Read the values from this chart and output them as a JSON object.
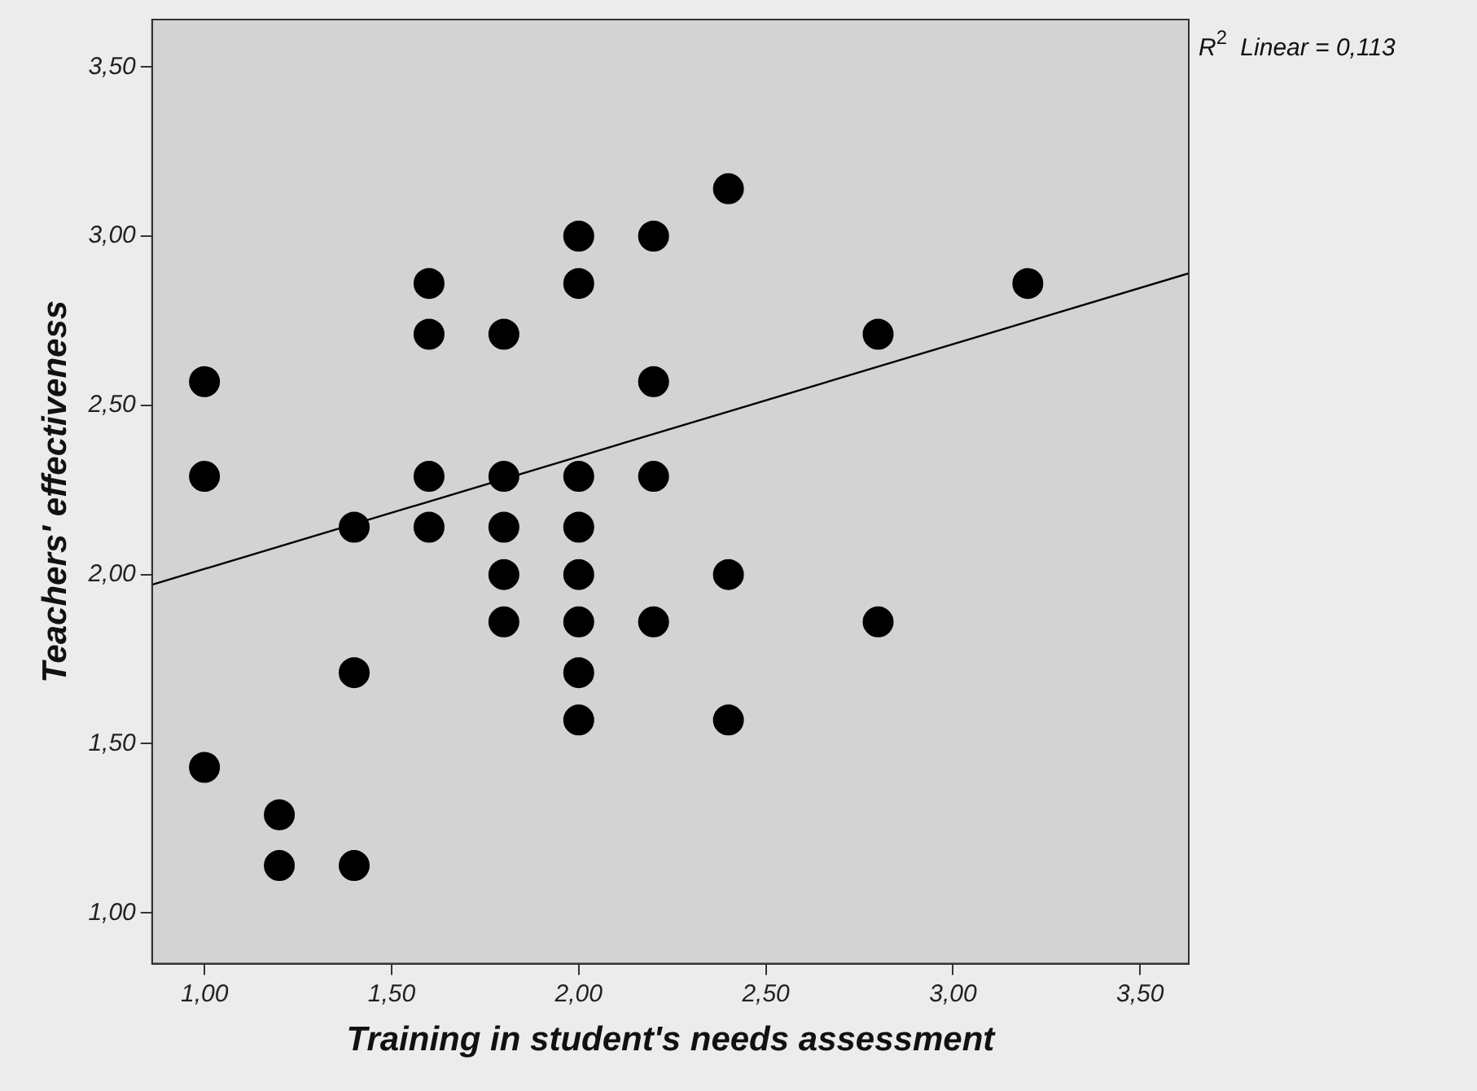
{
  "chart_data": {
    "type": "scatter",
    "xlabel": "Training in student's needs assessment",
    "ylabel": "Teachers' effectiveness",
    "annotations": [
      "R$^{2}$ Linear = 0,113"
    ],
    "xlim": [
      0.86,
      3.63
    ],
    "ylim": [
      0.85,
      3.64
    ],
    "xticks": [
      {
        "value": 1,
        "label": "1,00"
      },
      {
        "value": 1.5,
        "label": "1,50"
      },
      {
        "value": 2,
        "label": "2,00"
      },
      {
        "value": 2.5,
        "label": "2,50"
      },
      {
        "value": 3,
        "label": "3,00"
      },
      {
        "value": 3.5,
        "label": "3,50"
      }
    ],
    "yticks": [
      {
        "value": 1,
        "label": "1,00"
      },
      {
        "value": 1.5,
        "label": "1,50"
      },
      {
        "value": 2,
        "label": "2,00"
      },
      {
        "value": 2.5,
        "label": "2,50"
      },
      {
        "value": 3,
        "label": "3,00"
      },
      {
        "value": 3.5,
        "label": "3,50"
      }
    ],
    "grid": false,
    "legend": false,
    "marker": "circle",
    "series": [
      {
        "color": "#000000",
        "x": [
          1.0,
          1.0,
          1.0,
          1.2,
          1.2,
          1.4,
          1.4,
          1.4,
          1.6,
          1.6,
          1.6,
          1.6,
          1.8,
          1.8,
          1.8,
          1.8,
          1.8,
          2.0,
          2.0,
          2.0,
          2.0,
          2.0,
          2.0,
          2.0,
          2.0,
          2.2,
          2.2,
          2.2,
          2.2,
          2.4,
          2.4,
          2.4,
          2.8,
          2.8,
          3.2
        ],
        "values": [
          2.57,
          2.29,
          1.43,
          1.29,
          1.14,
          2.14,
          1.71,
          1.14,
          2.86,
          2.71,
          2.29,
          2.14,
          2.71,
          2.29,
          2.14,
          2.0,
          1.86,
          3.0,
          2.86,
          2.29,
          2.14,
          2.0,
          1.86,
          1.71,
          1.57,
          3.0,
          2.57,
          2.29,
          1.86,
          3.14,
          2.0,
          1.57,
          2.71,
          1.86,
          2.86
        ]
      },
      {
        "type": "line",
        "color": "#000000",
        "marker": "none",
        "x": [
          0.86,
          3.63
        ],
        "values": [
          1.97,
          2.89
        ]
      }
    ]
  }
}
